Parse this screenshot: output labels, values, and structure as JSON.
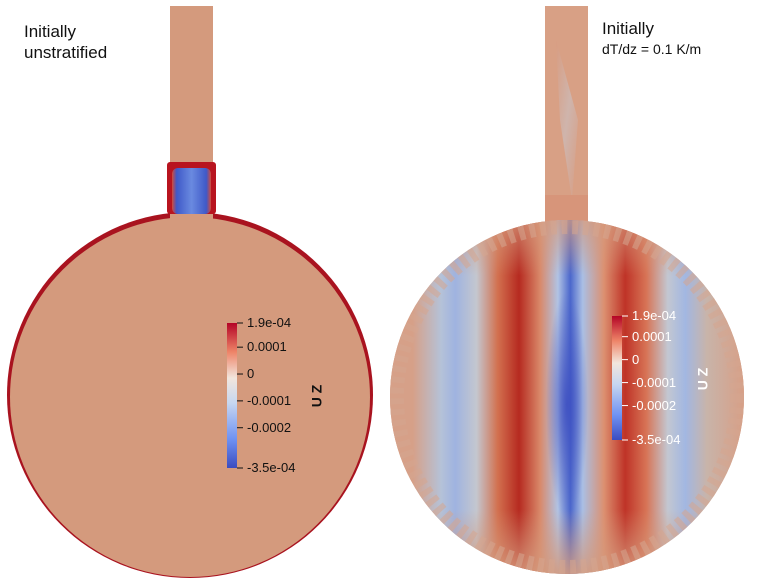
{
  "colors": {
    "background_field": "#d49a7d",
    "colormap_low": "#3b4cc0",
    "colormap_mid": "#dddddd",
    "colormap_high": "#b40426"
  },
  "left_panel": {
    "label_line1": "Initially",
    "label_line2": "unstratified",
    "colorbar": {
      "title": "U Z",
      "ticks": [
        "1.9e-04",
        "0.0001",
        "0",
        "-0.0001",
        "-0.0002",
        "-3.5e-04"
      ],
      "tick_values": [
        0.00019,
        0.0001,
        0,
        -0.0001,
        -0.0002,
        -0.00035
      ],
      "range": [
        -0.00035,
        0.00019
      ]
    }
  },
  "right_panel": {
    "label_line1": "Initially",
    "label_line2": "dT/dz = 0.1 K/m",
    "colorbar": {
      "title": "U Z",
      "ticks": [
        "1.9e-04",
        "0.0001",
        "0",
        "-0.0001",
        "-0.0002",
        "-3.5e-04"
      ],
      "tick_values": [
        0.00019,
        0.0001,
        0,
        -0.0001,
        -0.0002,
        -0.00035
      ],
      "range": [
        -0.00035,
        0.00019
      ]
    }
  }
}
